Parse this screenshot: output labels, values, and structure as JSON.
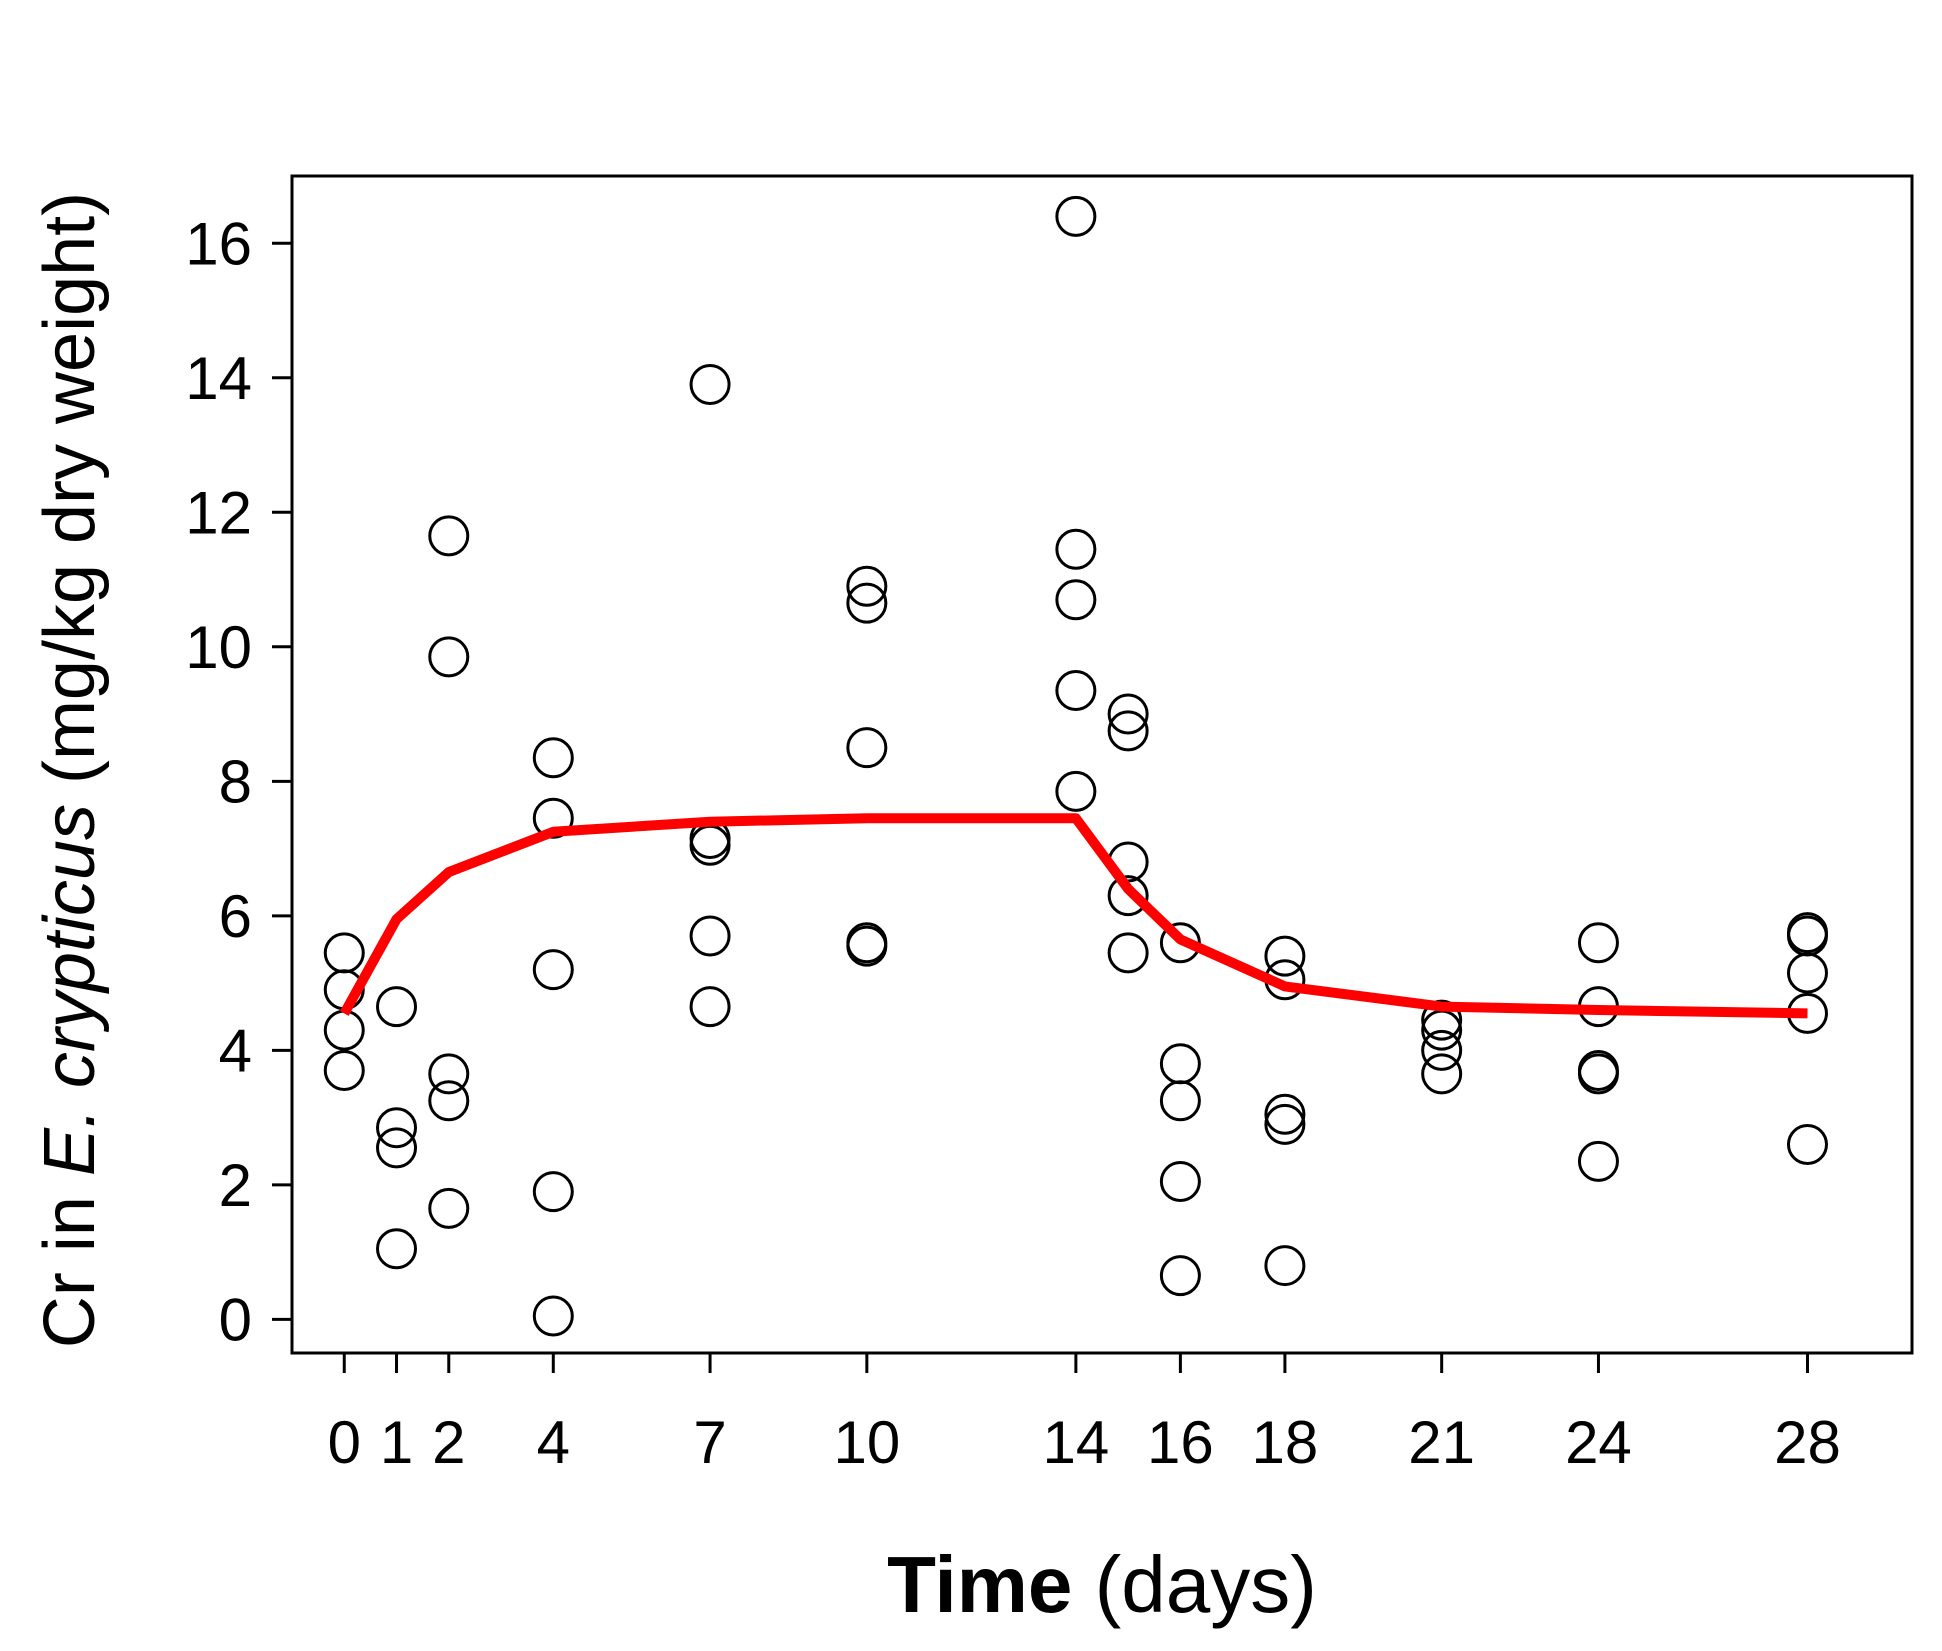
{
  "chart_data": {
    "type": "scatter",
    "title": "",
    "xlabel": {
      "bold_part": "Time",
      "rest": " (days)"
    },
    "ylabel": {
      "prefix": "Cr in ",
      "species": "E. crypticus",
      "suffix": " (mg/kg dry weight)"
    },
    "x_ticks": [
      0,
      1,
      2,
      4,
      7,
      10,
      14,
      16,
      18,
      21,
      24,
      28
    ],
    "y_ticks": [
      0,
      2,
      4,
      6,
      8,
      10,
      12,
      14,
      16
    ],
    "xlim": [
      -1,
      30
    ],
    "ylim": [
      -0.5,
      17
    ],
    "grid": false,
    "points": [
      {
        "x": 0,
        "y": 5.45
      },
      {
        "x": 0,
        "y": 4.9
      },
      {
        "x": 0,
        "y": 4.3
      },
      {
        "x": 0,
        "y": 3.7
      },
      {
        "x": 1,
        "y": 4.65
      },
      {
        "x": 1,
        "y": 2.85
      },
      {
        "x": 1,
        "y": 2.55
      },
      {
        "x": 1,
        "y": 1.05
      },
      {
        "x": 2,
        "y": 11.65
      },
      {
        "x": 2,
        "y": 9.85
      },
      {
        "x": 2,
        "y": 3.65
      },
      {
        "x": 2,
        "y": 3.25
      },
      {
        "x": 2,
        "y": 1.65
      },
      {
        "x": 4,
        "y": 8.35
      },
      {
        "x": 4,
        "y": 7.45
      },
      {
        "x": 4,
        "y": 5.2
      },
      {
        "x": 4,
        "y": 1.9
      },
      {
        "x": 4,
        "y": 0.05
      },
      {
        "x": 7,
        "y": 13.9
      },
      {
        "x": 7,
        "y": 7.15
      },
      {
        "x": 7,
        "y": 7.05
      },
      {
        "x": 7,
        "y": 5.7
      },
      {
        "x": 7,
        "y": 4.65
      },
      {
        "x": 10,
        "y": 10.9
      },
      {
        "x": 10,
        "y": 10.65
      },
      {
        "x": 10,
        "y": 8.5
      },
      {
        "x": 10,
        "y": 5.6
      },
      {
        "x": 10,
        "y": 5.55
      },
      {
        "x": 14,
        "y": 16.4
      },
      {
        "x": 14,
        "y": 11.45
      },
      {
        "x": 14,
        "y": 10.7
      },
      {
        "x": 14,
        "y": 9.35
      },
      {
        "x": 14,
        "y": 7.85
      },
      {
        "x": 15,
        "y": 9.0
      },
      {
        "x": 15,
        "y": 8.75
      },
      {
        "x": 15,
        "y": 6.8
      },
      {
        "x": 15,
        "y": 6.3
      },
      {
        "x": 15,
        "y": 5.45
      },
      {
        "x": 16,
        "y": 5.6
      },
      {
        "x": 16,
        "y": 3.8
      },
      {
        "x": 16,
        "y": 3.25
      },
      {
        "x": 16,
        "y": 2.05
      },
      {
        "x": 16,
        "y": 0.65
      },
      {
        "x": 18,
        "y": 5.4
      },
      {
        "x": 18,
        "y": 5.05
      },
      {
        "x": 18,
        "y": 3.05
      },
      {
        "x": 18,
        "y": 2.9
      },
      {
        "x": 18,
        "y": 0.8
      },
      {
        "x": 21,
        "y": 4.45
      },
      {
        "x": 21,
        "y": 4.3
      },
      {
        "x": 21,
        "y": 4.0
      },
      {
        "x": 21,
        "y": 3.65
      },
      {
        "x": 24,
        "y": 5.6
      },
      {
        "x": 24,
        "y": 4.65
      },
      {
        "x": 24,
        "y": 3.7
      },
      {
        "x": 24,
        "y": 3.65
      },
      {
        "x": 24,
        "y": 2.35
      },
      {
        "x": 28,
        "y": 5.75
      },
      {
        "x": 28,
        "y": 5.7
      },
      {
        "x": 28,
        "y": 5.15
      },
      {
        "x": 28,
        "y": 4.55
      },
      {
        "x": 28,
        "y": 2.6
      }
    ],
    "fit_line": {
      "color": "#ff0000",
      "x": [
        0,
        1,
        2,
        4,
        7,
        10,
        14,
        15,
        16,
        18,
        21,
        24,
        28
      ],
      "y": [
        4.55,
        5.95,
        6.65,
        7.25,
        7.4,
        7.45,
        7.45,
        6.4,
        5.65,
        4.95,
        4.65,
        4.6,
        4.55
      ]
    },
    "marker": {
      "shape": "open-circle",
      "stroke": "#000000"
    }
  }
}
